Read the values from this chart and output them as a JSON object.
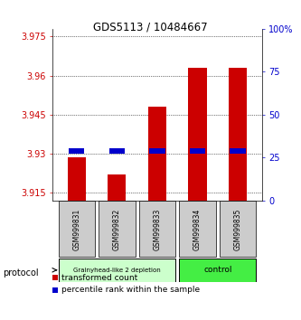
{
  "title": "GDS5113 / 10484667",
  "samples": [
    "GSM999831",
    "GSM999832",
    "GSM999833",
    "GSM999834",
    "GSM999835"
  ],
  "red_values": [
    3.9285,
    3.922,
    3.948,
    3.963,
    3.963
  ],
  "blue_values": [
    3.931,
    3.931,
    3.931,
    3.931,
    3.931
  ],
  "red_base": 3.912,
  "ylim": [
    3.912,
    3.978
  ],
  "yticks_left": [
    3.915,
    3.93,
    3.945,
    3.96,
    3.975
  ],
  "yticks_right": [
    0,
    25,
    50,
    75,
    100
  ],
  "yticks_right_labels": [
    "0",
    "25",
    "50",
    "75",
    "100%"
  ],
  "groups": [
    {
      "label": "Grainyhead-like 2 depletion",
      "indices": [
        0,
        1,
        2
      ],
      "color": "#ccffcc",
      "border": "#000000"
    },
    {
      "label": "control",
      "indices": [
        3,
        4
      ],
      "color": "#44ee44",
      "border": "#000000"
    }
  ],
  "protocol_label": "protocol",
  "legend_red": "transformed count",
  "legend_blue": "percentile rank within the sample",
  "red_color": "#cc0000",
  "blue_color": "#0000cc",
  "bar_width": 0.45,
  "background_color": "#ffffff",
  "sample_box_color": "#cccccc",
  "left_axis_color": "#cc0000",
  "right_axis_color": "#0000cc"
}
